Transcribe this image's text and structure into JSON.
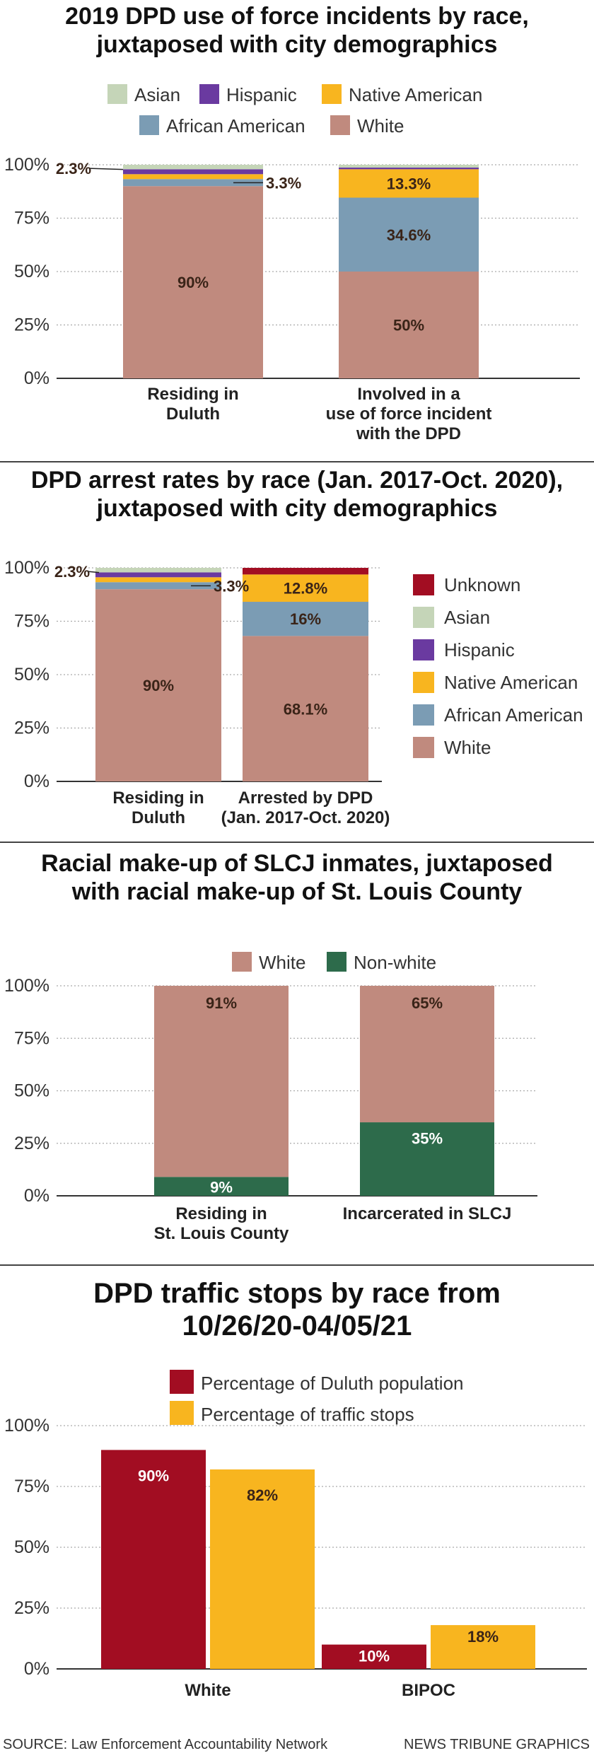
{
  "colors": {
    "Asian": "#c5d5b8",
    "Hispanic": "#6a3aa0",
    "Native American": "#f8b51f",
    "African American": "#7b9cb4",
    "White": "#c08a7e",
    "Unknown": "#a20d22",
    "Non-white": "#2d6b4b",
    "Percentage of Duluth population": "#a20d22",
    "Percentage of traffic stops": "#f8b51f"
  },
  "chart_data": [
    {
      "type": "bar",
      "stacked": true,
      "title_lines": [
        "2019 DPD use of force incidents by race,",
        "juxtaposed with city demographics"
      ],
      "legend": [
        "Asian",
        "Hispanic",
        "Native American",
        "African American",
        "White"
      ],
      "yticks": [
        "100%",
        "75%",
        "50%",
        "25%",
        "0%"
      ],
      "ylim": [
        0,
        100
      ],
      "categories": [
        {
          "label_lines": [
            "Residing in",
            "Duluth"
          ]
        },
        {
          "label_lines": [
            "Involved in a",
            "use of force incident",
            "with the DPD"
          ]
        }
      ],
      "series": [
        {
          "name": "White",
          "values": [
            90,
            50
          ]
        },
        {
          "name": "African American",
          "values": [
            3.3,
            34.6
          ]
        },
        {
          "name": "Native American",
          "values": [
            2.3,
            13.3
          ]
        },
        {
          "name": "Hispanic",
          "values": [
            2.3,
            0.8
          ]
        },
        {
          "name": "Asian",
          "values": [
            2.1,
            1.3
          ]
        }
      ],
      "data_labels": [
        {
          "bar": 0,
          "text": "90%"
        },
        {
          "bar": 0,
          "text": "2.3%"
        },
        {
          "bar": 0,
          "text": "3.3%"
        },
        {
          "bar": 1,
          "text": "50%"
        },
        {
          "bar": 1,
          "text": "34.6%"
        },
        {
          "bar": 1,
          "text": "13.3%"
        }
      ]
    },
    {
      "type": "bar",
      "stacked": true,
      "title_lines": [
        "DPD arrest rates by race (Jan. 2017-Oct. 2020),",
        "juxtaposed with city demographics"
      ],
      "legend": [
        "Unknown",
        "Asian",
        "Hispanic",
        "Native American",
        "African American",
        "White"
      ],
      "yticks": [
        "100%",
        "75%",
        "50%",
        "25%",
        "0%"
      ],
      "ylim": [
        0,
        100
      ],
      "categories": [
        {
          "label_lines": [
            "Residing in",
            "Duluth"
          ]
        },
        {
          "label_lines": [
            "Arrested by DPD",
            "(Jan. 2017-Oct. 2020)"
          ]
        }
      ],
      "series": [
        {
          "name": "White",
          "values": [
            90,
            68.1
          ]
        },
        {
          "name": "African American",
          "values": [
            3.3,
            16
          ]
        },
        {
          "name": "Native American",
          "values": [
            2.3,
            12.8
          ]
        },
        {
          "name": "Hispanic",
          "values": [
            2.3,
            0
          ]
        },
        {
          "name": "Asian",
          "values": [
            2.1,
            0
          ]
        },
        {
          "name": "Unknown",
          "values": [
            0,
            3.1
          ]
        }
      ],
      "data_labels": [
        {
          "bar": 0,
          "text": "90%"
        },
        {
          "bar": 0,
          "text": "2.3%"
        },
        {
          "bar": 0,
          "text": "3.3%"
        },
        {
          "bar": 1,
          "text": "68.1%"
        },
        {
          "bar": 1,
          "text": "16%"
        },
        {
          "bar": 1,
          "text": "12.8%"
        }
      ]
    },
    {
      "type": "bar",
      "stacked": true,
      "title_lines": [
        "Racial make-up of SLCJ inmates, juxtaposed",
        "with racial make-up of St. Louis County"
      ],
      "legend": [
        "White",
        "Non-white"
      ],
      "yticks": [
        "100%",
        "75%",
        "50%",
        "25%",
        "0%"
      ],
      "ylim": [
        0,
        100
      ],
      "categories": [
        {
          "label_lines": [
            "Residing in",
            "St. Louis County"
          ]
        },
        {
          "label_lines": [
            "Incarcerated in SLCJ"
          ]
        }
      ],
      "series": [
        {
          "name": "Non-white",
          "values": [
            9,
            35
          ]
        },
        {
          "name": "White",
          "values": [
            91,
            65
          ]
        }
      ],
      "data_labels": [
        {
          "bar": 0,
          "text": "91%"
        },
        {
          "bar": 0,
          "text": "9%"
        },
        {
          "bar": 1,
          "text": "65%"
        },
        {
          "bar": 1,
          "text": "35%"
        }
      ]
    },
    {
      "type": "bar",
      "grouped": true,
      "title_lines": [
        "DPD traffic stops by race from",
        "10/26/20-04/05/21"
      ],
      "legend": [
        "Percentage of Duluth population",
        "Percentage of traffic stops"
      ],
      "yticks": [
        "100%",
        "75%",
        "50%",
        "25%",
        "0%"
      ],
      "ylim": [
        0,
        100
      ],
      "categories": [
        {
          "label_lines": [
            "White"
          ]
        },
        {
          "label_lines": [
            "BIPOC"
          ]
        }
      ],
      "series": [
        {
          "name": "Percentage of Duluth population",
          "values": [
            90,
            10
          ]
        },
        {
          "name": "Percentage of traffic stops",
          "values": [
            82,
            18
          ]
        }
      ],
      "data_labels": [
        {
          "text": "90%"
        },
        {
          "text": "82%"
        },
        {
          "text": "10%"
        },
        {
          "text": "18%"
        }
      ]
    }
  ],
  "footer": {
    "source": "SOURCE: Law Enforcement Accountability Network",
    "credit": "NEWS TRIBUNE GRAPHICS"
  }
}
